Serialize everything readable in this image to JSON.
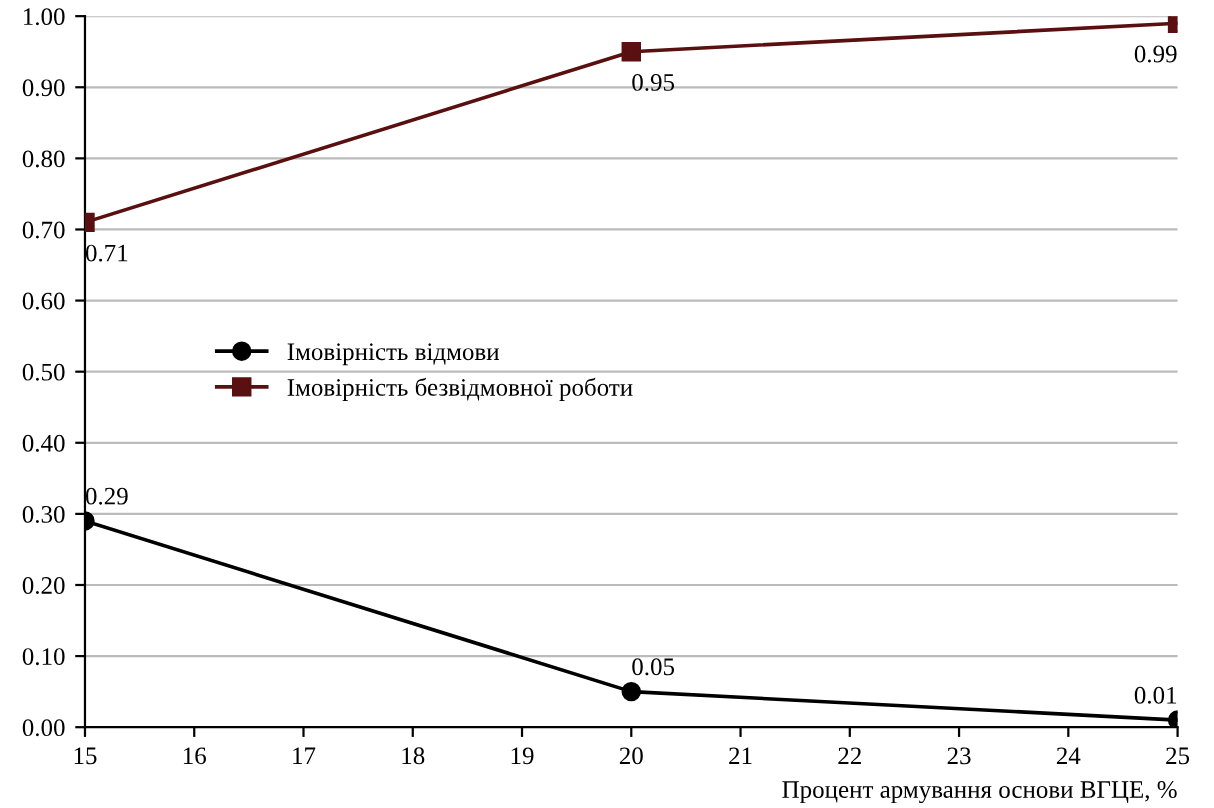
{
  "chart_data": {
    "type": "line",
    "xlabel": "Процент армування основи ВГЦЕ, %",
    "x": [
      15,
      20,
      25
    ],
    "series": [
      {
        "name": "Імовірність відмови",
        "color": "#000000",
        "marker": "circle",
        "values": [
          0.29,
          0.05,
          0.01
        ]
      },
      {
        "name": "Імовірність безвідмовної роботи",
        "color": "#5a1010",
        "marker": "square",
        "values": [
          0.71,
          0.95,
          0.99
        ]
      }
    ],
    "xlim": [
      15,
      25
    ],
    "xticks": [
      15,
      16,
      17,
      18,
      19,
      20,
      21,
      22,
      23,
      24,
      25
    ],
    "ylim": [
      0,
      1
    ],
    "yticks": [
      {
        "value": 0,
        "label": "0.00"
      },
      {
        "value": 0.1,
        "label": "0.10"
      },
      {
        "value": 0.2,
        "label": "0.20"
      },
      {
        "value": 0.3,
        "label": "0.30"
      },
      {
        "value": 0.4,
        "label": "0.40"
      },
      {
        "value": 0.5,
        "label": "0.50"
      },
      {
        "value": 0.6,
        "label": "0.60"
      },
      {
        "value": 0.7,
        "label": "0.70"
      },
      {
        "value": 0.8,
        "label": "0.80"
      },
      {
        "value": 0.9,
        "label": "0.90"
      },
      {
        "value": 1,
        "label": "1.00"
      }
    ],
    "grid": "y",
    "legend": "left",
    "data_labels": true,
    "line_style": "solid"
  }
}
